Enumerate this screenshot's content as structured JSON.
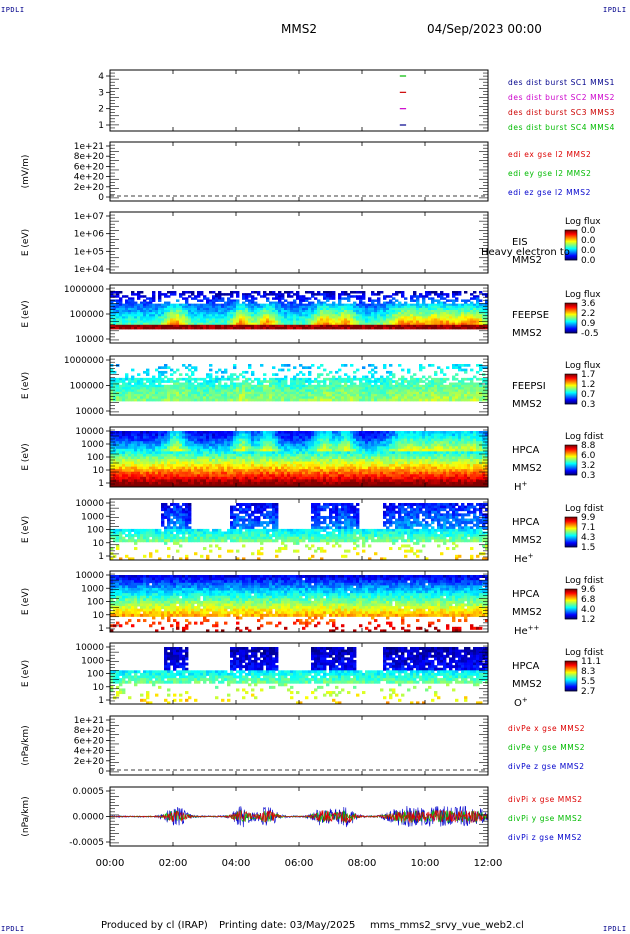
{
  "corner_labels": {
    "tl": "IPDLI",
    "tr": "IPDLI",
    "bl": "IPDLI",
    "br": "IPDLI"
  },
  "header": {
    "spacecraft": "MMS2",
    "datetime": "04/Sep/2023 00:00"
  },
  "footer": {
    "produced_by": "Produced by cl (IRAP)",
    "printing_date": "Printing date: 03/May/2025",
    "filename": "mms_mms2_srvy_vue_web2.cl"
  },
  "colors": {
    "sc1": "#00008b",
    "sc2": "#cc00cc",
    "sc3": "#cc0000",
    "sc4": "#00bb00",
    "red": "#dd0000",
    "green": "#00bb00",
    "blue": "#0000cc"
  },
  "time_axis": {
    "ticks": [
      "00:00",
      "02:00",
      "04:00",
      "06:00",
      "08:00",
      "10:00",
      "12:00"
    ],
    "range_hours": [
      0,
      12
    ]
  },
  "chart_data": [
    {
      "type": "line",
      "id": "burst",
      "ylim": [
        0.5,
        4.5
      ],
      "y_ticks": [
        "4",
        "3",
        "2",
        "1"
      ],
      "legend": [
        {
          "text": "des dist burst SC1 MMS1",
          "color": "#00008b"
        },
        {
          "text": "des dist burst SC2 MMS2",
          "color": "#cc00cc"
        },
        {
          "text": "des dist burst SC3 MMS3",
          "color": "#cc0000"
        },
        {
          "text": "des dist burst SC4 MMS4",
          "color": "#00bb00"
        }
      ],
      "series": [
        {
          "level": 4,
          "color": "#00bb00",
          "x": [
            9.2,
            9.4
          ]
        },
        {
          "level": 3,
          "color": "#cc0000",
          "x": [
            9.2,
            9.4
          ]
        },
        {
          "level": 2,
          "color": "#cc00cc",
          "x": [
            9.2,
            9.4
          ]
        },
        {
          "level": 1,
          "color": "#00008b",
          "x": [
            9.2,
            9.4
          ]
        }
      ]
    },
    {
      "type": "line",
      "id": "edi",
      "ylabel": "(mV/m)",
      "y_ticks": [
        "1e+21",
        "8e+20",
        "6e+20",
        "4e+20",
        "2e+20",
        "0"
      ],
      "legend": [
        {
          "text": "edi ex gse l2 MMS2",
          "color": "#dd0000"
        },
        {
          "text": "edi ey gse l2 MMS2",
          "color": "#00bb00"
        },
        {
          "text": "edi ez gse l2 MMS2",
          "color": "#0000cc"
        }
      ]
    },
    {
      "type": "heatmap",
      "id": "eis",
      "ylabel": "E (eV)",
      "y_ticks": [
        "1e+07",
        "1e+06",
        "1e+05",
        "1e+04"
      ],
      "instrument": "EIS",
      "overlay_text": "Heavy electron to",
      "sc": "MMS2",
      "cbar_title": "Log flux",
      "cbar_ticks": [
        "0.0",
        "0.0",
        "0.0",
        "0.0"
      ]
    },
    {
      "type": "heatmap",
      "id": "feepse",
      "ylabel": "E (eV)",
      "y_ticks": [
        "1000000",
        "100000",
        "10000"
      ],
      "instrument": "FEEPSE",
      "sc": "MMS2",
      "cbar_title": "Log flux",
      "cbar_ticks": [
        "3.6",
        "2.2",
        "0.9",
        "-0.5"
      ]
    },
    {
      "type": "heatmap",
      "id": "feepsi",
      "ylabel": "E (eV)",
      "y_ticks": [
        "1000000",
        "100000",
        "10000"
      ],
      "instrument": "FEEPSI",
      "sc": "MMS2",
      "cbar_title": "Log flux",
      "cbar_ticks": [
        "1.7",
        "1.2",
        "0.7",
        "0.3"
      ]
    },
    {
      "type": "heatmap",
      "id": "hpca_h",
      "ylabel": "E (eV)",
      "y_ticks": [
        "10000",
        "1000",
        "100",
        "10",
        "1"
      ],
      "instrument": "HPCA",
      "sc": "MMS2",
      "species": "H",
      "species_sup": "+",
      "cbar_title": "Log fdist",
      "cbar_ticks": [
        "8.8",
        "6.0",
        "3.2",
        "0.3"
      ]
    },
    {
      "type": "heatmap",
      "id": "hpca_he",
      "ylabel": "E (eV)",
      "y_ticks": [
        "10000",
        "1000",
        "100",
        "10",
        "1"
      ],
      "instrument": "HPCA",
      "sc": "MMS2",
      "species": "He",
      "species_sup": "+",
      "cbar_title": "Log fdist",
      "cbar_ticks": [
        "9.9",
        "7.1",
        "4.3",
        "1.5"
      ]
    },
    {
      "type": "heatmap",
      "id": "hpca_hepp",
      "ylabel": "E (eV)",
      "y_ticks": [
        "10000",
        "1000",
        "100",
        "10",
        "1"
      ],
      "instrument": "HPCA",
      "sc": "MMS2",
      "species": "He",
      "species_sup": "++",
      "cbar_title": "Log fdist",
      "cbar_ticks": [
        "9.6",
        "6.8",
        "4.0",
        "1.2"
      ]
    },
    {
      "type": "heatmap",
      "id": "hpca_o",
      "ylabel": "E (eV)",
      "y_ticks": [
        "10000",
        "1000",
        "100",
        "10",
        "1"
      ],
      "instrument": "HPCA",
      "sc": "MMS2",
      "species": "O",
      "species_sup": "+",
      "cbar_title": "Log fdist",
      "cbar_ticks": [
        "11.1",
        "8.3",
        "5.5",
        "2.7"
      ]
    },
    {
      "type": "line",
      "id": "divpe",
      "ylabel": "(nPa/km)",
      "y_ticks": [
        "1e+21",
        "8e+20",
        "6e+20",
        "4e+20",
        "2e+20",
        "0"
      ],
      "legend": [
        {
          "text": "divPe x gse MMS2",
          "color": "#dd0000"
        },
        {
          "text": "divPe y gse MMS2",
          "color": "#00bb00"
        },
        {
          "text": "divPe z gse MMS2",
          "color": "#0000cc"
        }
      ]
    },
    {
      "type": "line",
      "id": "divpi",
      "ylabel": "(nPa/km)",
      "y_ticks": [
        "0.0005",
        "0.0000",
        "-0.0005"
      ],
      "ylim": [
        -0.0009,
        0.0009
      ],
      "legend": [
        {
          "text": "divPi x gse MMS2",
          "color": "#dd0000"
        },
        {
          "text": "divPi y gse MMS2",
          "color": "#00bb00"
        },
        {
          "text": "divPi z gse MMS2",
          "color": "#0000cc"
        }
      ]
    }
  ]
}
